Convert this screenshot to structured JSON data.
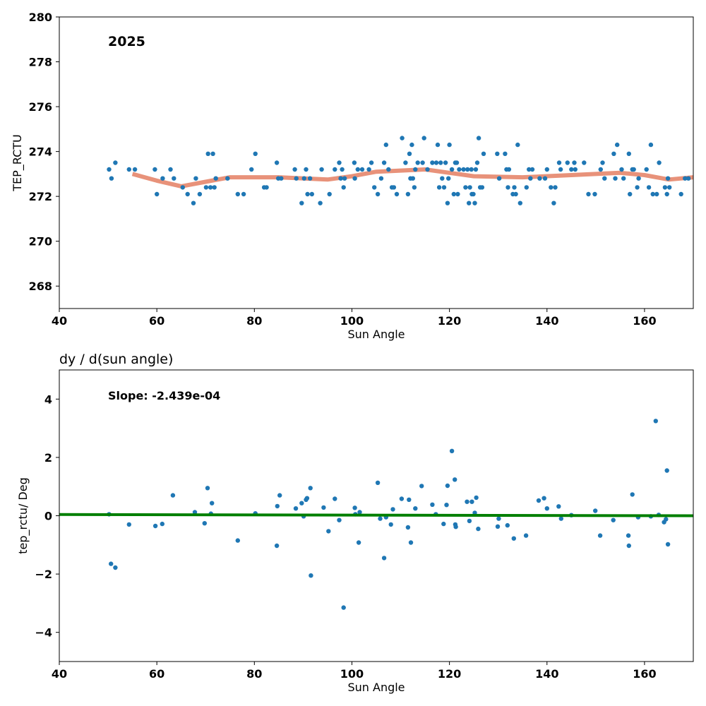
{
  "chart_data": [
    {
      "type": "scatter",
      "title": "",
      "annotation": "2025",
      "xlabel": "Sun Angle",
      "ylabel": "TEP_RCTU",
      "xlim": [
        40,
        170
      ],
      "ylim": [
        267,
        280
      ],
      "xticks": [
        40,
        60,
        80,
        100,
        120,
        140,
        160
      ],
      "yticks": [
        268,
        270,
        272,
        274,
        276,
        278,
        280
      ],
      "grid": false,
      "colors": {
        "points": "#1f77b4",
        "trend": "#e8927a"
      },
      "points": [
        [
          50.2,
          273.2
        ],
        [
          50.7,
          272.8
        ],
        [
          51.5,
          273.5
        ],
        [
          54.3,
          273.2
        ],
        [
          55.5,
          273.2
        ],
        [
          59.6,
          273.2
        ],
        [
          60.0,
          272.1
        ],
        [
          61.2,
          272.8
        ],
        [
          62.8,
          273.2
        ],
        [
          63.5,
          272.8
        ],
        [
          65.3,
          272.4
        ],
        [
          66.3,
          272.1
        ],
        [
          67.5,
          271.7
        ],
        [
          68.0,
          272.8
        ],
        [
          68.8,
          272.1
        ],
        [
          70.1,
          272.4
        ],
        [
          70.5,
          273.9
        ],
        [
          71.0,
          272.4
        ],
        [
          71.5,
          273.9
        ],
        [
          71.8,
          272.4
        ],
        [
          72.1,
          272.8
        ],
        [
          74.5,
          272.8
        ],
        [
          76.6,
          272.1
        ],
        [
          77.8,
          272.1
        ],
        [
          79.4,
          273.2
        ],
        [
          80.2,
          273.9
        ],
        [
          82.0,
          272.4
        ],
        [
          82.5,
          272.4
        ],
        [
          84.6,
          273.5
        ],
        [
          84.9,
          272.8
        ],
        [
          85.5,
          272.8
        ],
        [
          88.3,
          273.2
        ],
        [
          88.6,
          272.8
        ],
        [
          89.7,
          271.7
        ],
        [
          90.2,
          272.8
        ],
        [
          90.6,
          273.2
        ],
        [
          90.9,
          272.1
        ],
        [
          91.4,
          272.8
        ],
        [
          91.8,
          272.1
        ],
        [
          93.5,
          271.7
        ],
        [
          93.8,
          273.2
        ],
        [
          95.4,
          272.1
        ],
        [
          96.5,
          273.2
        ],
        [
          97.4,
          273.5
        ],
        [
          97.7,
          272.8
        ],
        [
          98.0,
          273.2
        ],
        [
          98.3,
          272.4
        ],
        [
          98.5,
          272.8
        ],
        [
          100.5,
          273.5
        ],
        [
          100.6,
          272.8
        ],
        [
          101.2,
          273.2
        ],
        [
          102.1,
          273.2
        ],
        [
          103.5,
          273.2
        ],
        [
          104.0,
          273.5
        ],
        [
          104.6,
          272.4
        ],
        [
          105.3,
          272.1
        ],
        [
          106.0,
          272.8
        ],
        [
          106.6,
          273.5
        ],
        [
          107.0,
          274.3
        ],
        [
          107.5,
          273.2
        ],
        [
          108.2,
          272.4
        ],
        [
          108.6,
          272.4
        ],
        [
          109.2,
          272.1
        ],
        [
          110.3,
          274.6
        ],
        [
          111.0,
          273.5
        ],
        [
          111.5,
          272.1
        ],
        [
          111.8,
          273.9
        ],
        [
          112.0,
          272.8
        ],
        [
          112.3,
          274.3
        ],
        [
          112.5,
          272.8
        ],
        [
          112.8,
          272.4
        ],
        [
          113.0,
          273.2
        ],
        [
          113.5,
          273.5
        ],
        [
          114.5,
          273.5
        ],
        [
          114.8,
          274.6
        ],
        [
          115.5,
          273.2
        ],
        [
          116.5,
          273.5
        ],
        [
          117.3,
          273.5
        ],
        [
          117.6,
          274.3
        ],
        [
          117.9,
          272.4
        ],
        [
          118.2,
          273.5
        ],
        [
          118.5,
          272.8
        ],
        [
          118.9,
          272.4
        ],
        [
          119.2,
          273.5
        ],
        [
          119.6,
          271.7
        ],
        [
          119.8,
          272.8
        ],
        [
          120.0,
          274.3
        ],
        [
          120.5,
          273.2
        ],
        [
          120.9,
          272.1
        ],
        [
          121.2,
          273.5
        ],
        [
          121.5,
          273.5
        ],
        [
          121.7,
          272.1
        ],
        [
          122.0,
          273.2
        ],
        [
          122.9,
          273.2
        ],
        [
          123.3,
          272.4
        ],
        [
          123.7,
          273.2
        ],
        [
          124.0,
          271.7
        ],
        [
          124.2,
          272.4
        ],
        [
          124.5,
          273.2
        ],
        [
          124.6,
          272.1
        ],
        [
          124.9,
          272.1
        ],
        [
          125.2,
          271.7
        ],
        [
          125.4,
          273.2
        ],
        [
          125.7,
          273.5
        ],
        [
          126.0,
          274.6
        ],
        [
          126.3,
          272.4
        ],
        [
          126.7,
          272.4
        ],
        [
          127.0,
          273.9
        ],
        [
          129.8,
          273.9
        ],
        [
          130.2,
          272.8
        ],
        [
          131.4,
          273.9
        ],
        [
          131.7,
          273.2
        ],
        [
          132.0,
          272.4
        ],
        [
          132.2,
          273.2
        ],
        [
          133.0,
          272.1
        ],
        [
          133.3,
          272.4
        ],
        [
          133.6,
          272.1
        ],
        [
          134.0,
          274.3
        ],
        [
          134.5,
          271.7
        ],
        [
          135.8,
          272.4
        ],
        [
          136.3,
          273.2
        ],
        [
          136.6,
          272.8
        ],
        [
          137.0,
          273.2
        ],
        [
          138.5,
          272.8
        ],
        [
          139.6,
          272.8
        ],
        [
          140.0,
          273.2
        ],
        [
          140.8,
          272.4
        ],
        [
          141.4,
          271.7
        ],
        [
          141.7,
          272.4
        ],
        [
          142.5,
          273.5
        ],
        [
          142.8,
          273.2
        ],
        [
          144.2,
          273.5
        ],
        [
          145.0,
          273.2
        ],
        [
          145.6,
          273.5
        ],
        [
          145.8,
          273.2
        ],
        [
          147.6,
          273.5
        ],
        [
          148.5,
          272.1
        ],
        [
          149.8,
          272.1
        ],
        [
          151.0,
          273.2
        ],
        [
          151.4,
          273.5
        ],
        [
          151.8,
          272.8
        ],
        [
          153.7,
          273.9
        ],
        [
          154.0,
          272.8
        ],
        [
          154.4,
          274.3
        ],
        [
          155.3,
          273.2
        ],
        [
          155.7,
          272.8
        ],
        [
          156.8,
          273.9
        ],
        [
          157.0,
          272.1
        ],
        [
          157.5,
          273.2
        ],
        [
          157.8,
          273.2
        ],
        [
          158.5,
          272.4
        ],
        [
          158.8,
          272.8
        ],
        [
          160.4,
          273.2
        ],
        [
          160.9,
          272.4
        ],
        [
          161.3,
          274.3
        ],
        [
          161.7,
          272.1
        ],
        [
          162.5,
          272.1
        ],
        [
          163.0,
          273.5
        ],
        [
          164.2,
          272.4
        ],
        [
          164.6,
          272.1
        ],
        [
          164.8,
          272.8
        ],
        [
          165.1,
          272.4
        ],
        [
          167.5,
          272.1
        ],
        [
          168.3,
          272.8
        ],
        [
          169.0,
          272.8
        ]
      ],
      "trend": [
        [
          55,
          273.0
        ],
        [
          60,
          272.7
        ],
        [
          65,
          272.45
        ],
        [
          70,
          272.65
        ],
        [
          75,
          272.85
        ],
        [
          85,
          272.85
        ],
        [
          95,
          272.75
        ],
        [
          100,
          272.9
        ],
        [
          105,
          273.1
        ],
        [
          110,
          273.15
        ],
        [
          115,
          273.2
        ],
        [
          120,
          273.05
        ],
        [
          125,
          272.9
        ],
        [
          135,
          272.85
        ],
        [
          145,
          272.95
        ],
        [
          155,
          273.05
        ],
        [
          160,
          272.95
        ],
        [
          165,
          272.75
        ],
        [
          170,
          272.85
        ]
      ]
    },
    {
      "type": "scatter",
      "title": "dy / d(sun angle)",
      "annotation": "Slope: -2.439e-04",
      "xlabel": "Sun Angle",
      "ylabel": "tep_rctu/ Deg",
      "xlim": [
        40,
        170
      ],
      "ylim": [
        -5,
        5
      ],
      "xticks": [
        40,
        60,
        80,
        100,
        120,
        140,
        160
      ],
      "yticks": [
        -4,
        -2,
        0,
        2,
        4
      ],
      "ytick_labels": [
        "−4",
        "−2",
        "0",
        "2",
        "4"
      ],
      "grid": false,
      "colors": {
        "points": "#1f77b4",
        "fit": "#007f00"
      },
      "points": [
        [
          50.2,
          0.05
        ],
        [
          50.6,
          -1.65
        ],
        [
          51.5,
          -1.78
        ],
        [
          54.3,
          -0.3
        ],
        [
          59.7,
          -0.35
        ],
        [
          61.1,
          -0.28
        ],
        [
          63.3,
          0.7
        ],
        [
          67.8,
          0.12
        ],
        [
          69.8,
          -0.26
        ],
        [
          70.4,
          0.95
        ],
        [
          71.1,
          0.07
        ],
        [
          71.3,
          0.43
        ],
        [
          76.6,
          -0.85
        ],
        [
          80.2,
          0.08
        ],
        [
          84.6,
          -1.03
        ],
        [
          84.7,
          0.33
        ],
        [
          85.2,
          0.7
        ],
        [
          88.5,
          0.25
        ],
        [
          89.7,
          0.43
        ],
        [
          90.1,
          -0.02
        ],
        [
          90.6,
          0.55
        ],
        [
          90.8,
          0.6
        ],
        [
          91.5,
          0.95
        ],
        [
          91.6,
          -2.05
        ],
        [
          94.2,
          0.28
        ],
        [
          95.2,
          -0.53
        ],
        [
          96.5,
          0.58
        ],
        [
          97.4,
          -0.15
        ],
        [
          98.3,
          -3.15
        ],
        [
          100.6,
          0.27
        ],
        [
          100.7,
          0.05
        ],
        [
          101.4,
          -0.92
        ],
        [
          101.6,
          0.12
        ],
        [
          105.3,
          1.13
        ],
        [
          105.8,
          -0.1
        ],
        [
          106.6,
          -1.45
        ],
        [
          107.0,
          -0.05
        ],
        [
          108.0,
          -0.3
        ],
        [
          108.4,
          0.22
        ],
        [
          110.2,
          0.58
        ],
        [
          111.5,
          -0.4
        ],
        [
          111.7,
          0.55
        ],
        [
          112.1,
          -0.92
        ],
        [
          113.0,
          0.25
        ],
        [
          114.3,
          1.02
        ],
        [
          116.5,
          0.38
        ],
        [
          117.2,
          0.05
        ],
        [
          118.8,
          -0.28
        ],
        [
          119.4,
          0.37
        ],
        [
          119.6,
          1.03
        ],
        [
          120.5,
          2.22
        ],
        [
          121.1,
          1.24
        ],
        [
          121.2,
          -0.3
        ],
        [
          121.3,
          -0.38
        ],
        [
          123.6,
          0.48
        ],
        [
          124.1,
          -0.18
        ],
        [
          124.6,
          0.48
        ],
        [
          125.2,
          0.1
        ],
        [
          125.5,
          0.62
        ],
        [
          125.9,
          -0.45
        ],
        [
          129.9,
          -0.37
        ],
        [
          130.1,
          -0.1
        ],
        [
          131.9,
          -0.33
        ],
        [
          133.2,
          -0.78
        ],
        [
          135.7,
          -0.68
        ],
        [
          138.3,
          0.52
        ],
        [
          139.4,
          0.6
        ],
        [
          140.0,
          0.25
        ],
        [
          142.4,
          0.32
        ],
        [
          142.9,
          -0.1
        ],
        [
          145.0,
          0.02
        ],
        [
          149.9,
          0.17
        ],
        [
          150.9,
          -0.68
        ],
        [
          153.6,
          -0.15
        ],
        [
          156.7,
          -0.68
        ],
        [
          156.8,
          -1.03
        ],
        [
          157.5,
          0.73
        ],
        [
          158.7,
          -0.05
        ],
        [
          161.3,
          -0.02
        ],
        [
          162.3,
          3.25
        ],
        [
          162.9,
          0.03
        ],
        [
          164.0,
          -0.22
        ],
        [
          164.4,
          -0.12
        ],
        [
          164.6,
          1.55
        ],
        [
          164.8,
          -0.98
        ]
      ],
      "fit": [
        [
          40,
          0.04
        ],
        [
          170,
          0.0
        ]
      ]
    }
  ]
}
